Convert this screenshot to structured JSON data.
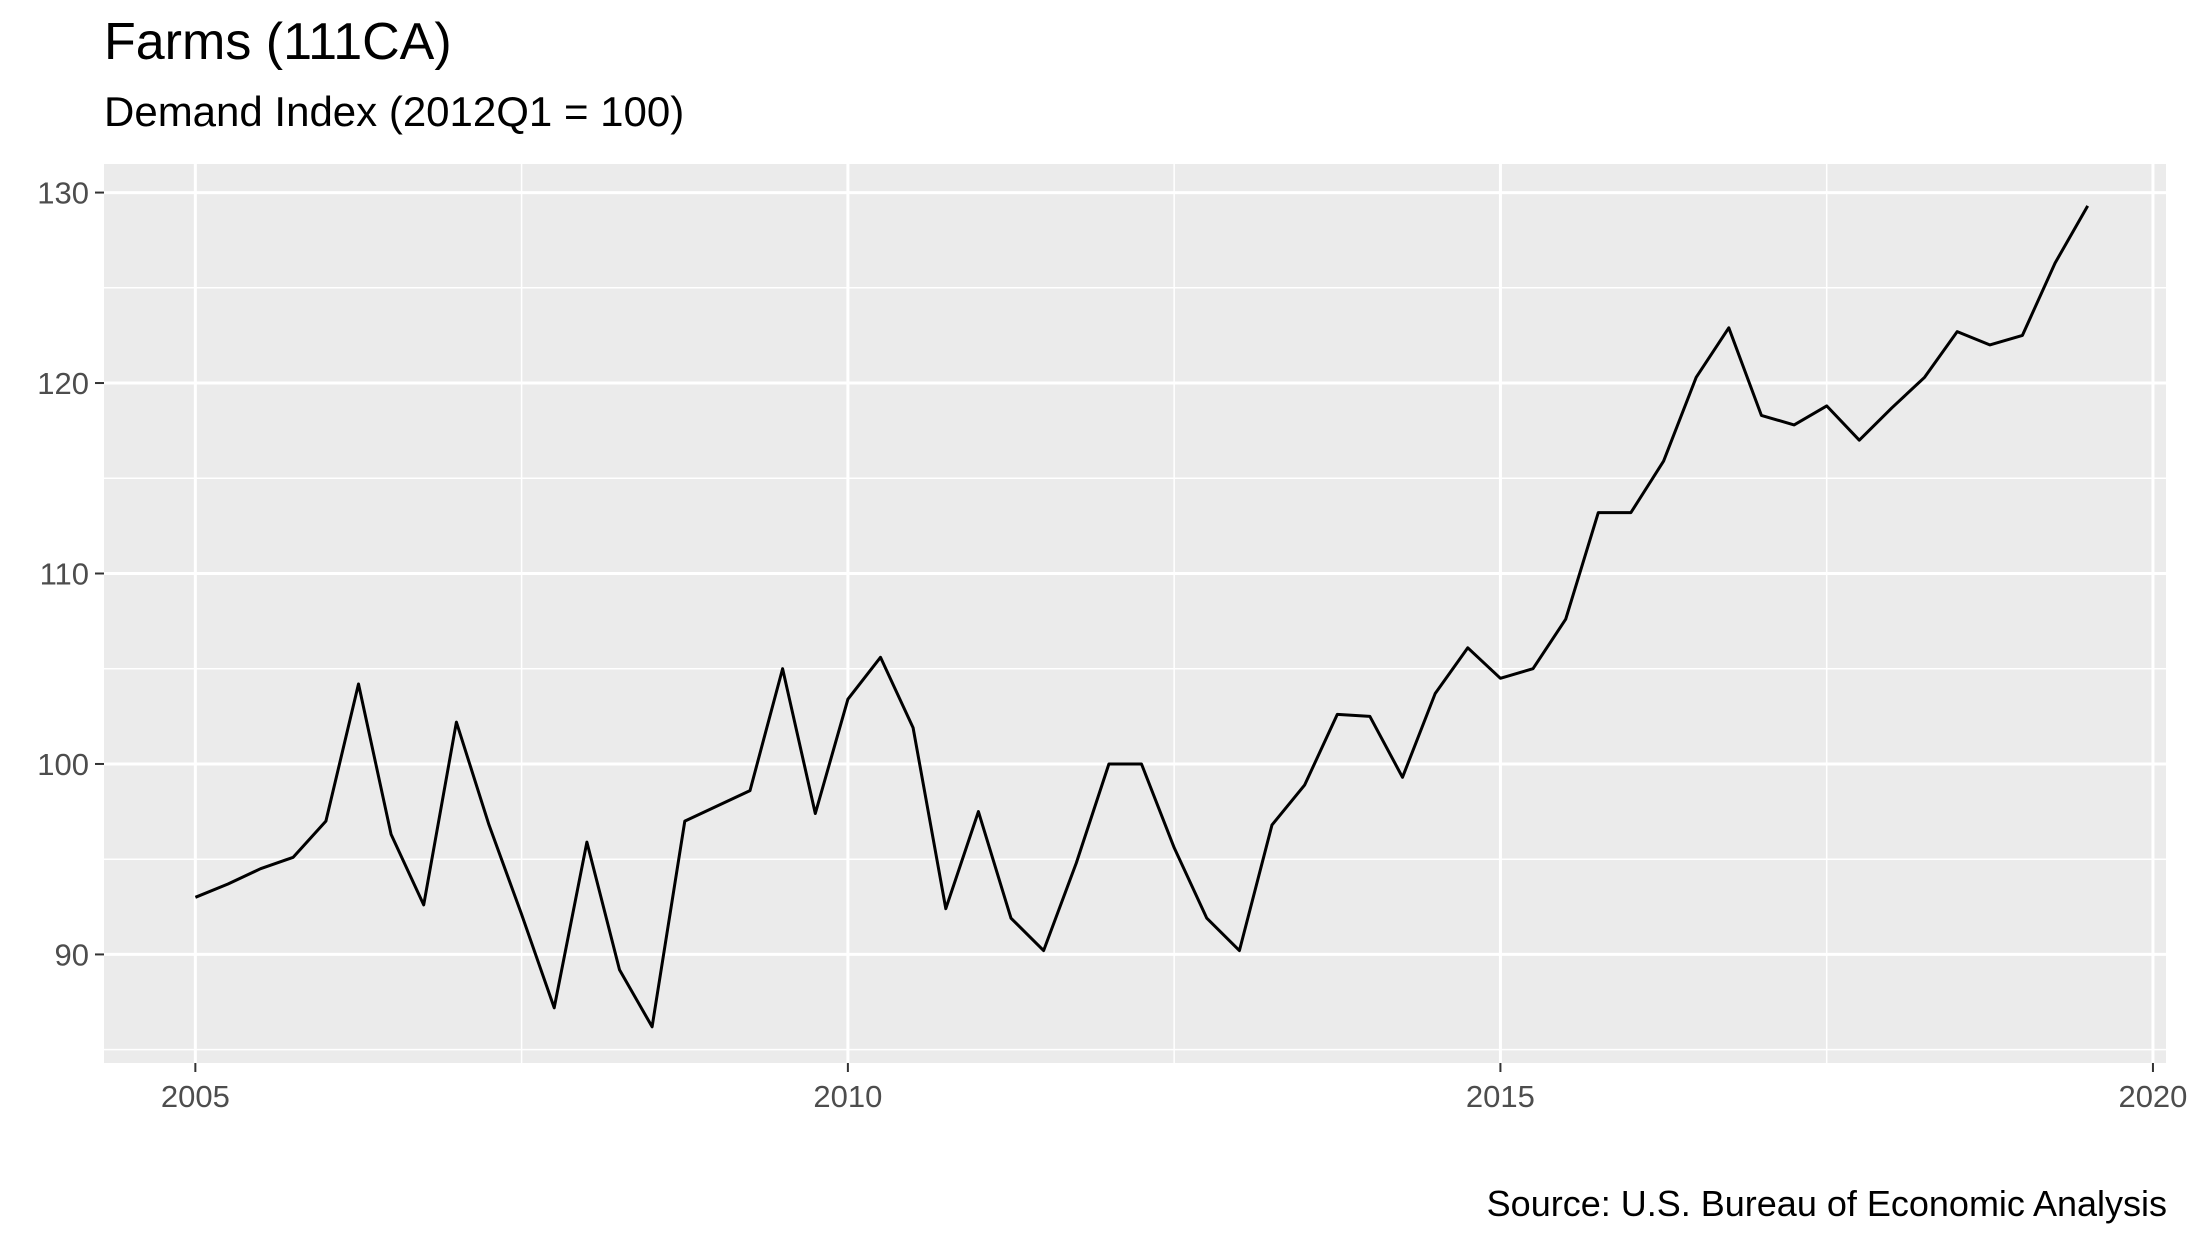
{
  "chart_data": {
    "type": "line",
    "title": "Farms (111CA)",
    "subtitle": "Demand Index (2012Q1 = 100)",
    "caption": "Source: U.S. Bureau of Economic Analysis",
    "xlabel": "",
    "ylabel": "",
    "xlim": [
      2004.3,
      2020.1
    ],
    "ylim": [
      84.3,
      131.5
    ],
    "x_ticks": [
      2005,
      2010,
      2015,
      2020
    ],
    "x_tick_labels": [
      "2005",
      "2010",
      "2015",
      "2020"
    ],
    "y_ticks": [
      90,
      100,
      110,
      120,
      130
    ],
    "y_tick_labels": [
      "90",
      "100",
      "110",
      "120",
      "130"
    ],
    "grid": true,
    "line_color": "#000000",
    "panel_background": "#ebebeb",
    "grid_color": "#ffffff",
    "series": [
      {
        "x": [
          2005.0,
          2005.25,
          2005.5,
          2005.75,
          2006.0,
          2006.25,
          2006.5,
          2006.75,
          2007.0,
          2007.25,
          2007.5,
          2007.75,
          2008.0,
          2008.25,
          2008.5,
          2008.75,
          2009.0,
          2009.25,
          2009.5,
          2009.75,
          2010.0,
          2010.25,
          2010.5,
          2010.75,
          2011.0,
          2011.25,
          2011.5,
          2011.75,
          2012.0,
          2012.25,
          2012.5,
          2012.75,
          2013.0,
          2013.25,
          2013.5,
          2013.75,
          2014.0,
          2014.25,
          2014.5,
          2014.75,
          2015.0,
          2015.25,
          2015.5,
          2015.75,
          2016.0,
          2016.25,
          2016.5,
          2016.75,
          2017.0,
          2017.25,
          2017.5,
          2017.75,
          2018.0,
          2018.25,
          2018.5,
          2018.75,
          2019.0,
          2019.25,
          2019.5
        ],
        "values": [
          93.0,
          93.7,
          94.5,
          95.1,
          97.0,
          104.2,
          96.3,
          92.6,
          102.2,
          96.8,
          92.1,
          87.2,
          95.9,
          89.2,
          86.2,
          97.0,
          97.8,
          98.6,
          105.0,
          97.4,
          103.4,
          105.6,
          101.9,
          92.4,
          97.5,
          91.9,
          90.2,
          94.8,
          100.0,
          100.0,
          95.6,
          91.9,
          90.2,
          96.8,
          98.9,
          102.6,
          102.5,
          99.3,
          103.7,
          106.1,
          104.5,
          105.0,
          107.6,
          113.2,
          113.2,
          115.9,
          120.3,
          122.9,
          118.3,
          117.8,
          118.8,
          117.0,
          118.7,
          120.3,
          122.7,
          122.0,
          122.5,
          126.3,
          129.3
        ]
      }
    ]
  }
}
